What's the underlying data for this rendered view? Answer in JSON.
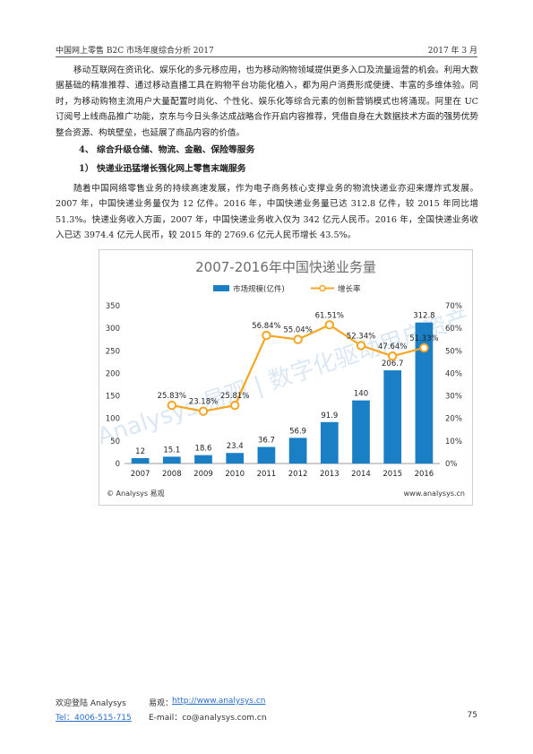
{
  "header": {
    "left": "中国网上零售 B2C 市场年度综合分析 2017",
    "right": "2017 年 3 月"
  },
  "paragraphs": {
    "p1": "移动互联网在资讯化、娱乐化的多元移应用，也为移动购物领域提供更多入口及流量运营的机会。利用大数据基础的精准推荐、通过移动直播工具在购物平台功能化植入，都为用户消费形成便捷、丰富的多维体验。同时，为移动购物主流用户大量配置时尚化、个性化、娱乐化等综合元素的创新营销模式也将涌现。阿里在 UC 订阅号上线商品推广功能，京东与今日头条达成战略合作开启内容推荐，凭借自身在大数据技术方面的强势优势整合资源、构筑壁垒，也延展了商品内容的价值。",
    "p2": "随着中国网络零售业务的持续高速发展，作为电子商务核心支撑业务的物流快递业亦迎来爆炸式发展。2007 年，中国快递业务量仅为 12 亿件。2016 年，中国快递业务量已达 312.8 亿件，较 2015 年同比增 51.3%。快递业务收入方面，2007 年，中国快递业务收入仅为 342 亿元人民币。2016 年，全国快递业务收入已达 3974.4 亿元人民币，较 2015 年的 2769.6 亿元人民币增长 43.5%。"
  },
  "headings": {
    "h4": "4、 综合升级仓储、物流、金融、保险等服务",
    "h41": "1） 快递业迅猛增长强化网上零售末端服务"
  },
  "chart_data": {
    "type": "bar",
    "title": "2007-2016年中国快递业务量",
    "categories": [
      "2007",
      "2008",
      "2009",
      "2010",
      "2011",
      "2012",
      "2013",
      "2014",
      "2015",
      "2016"
    ],
    "series": [
      {
        "name": "市场规模(亿件)",
        "type": "bar",
        "axis": "left",
        "values": [
          12,
          15.1,
          18.6,
          23.4,
          36.7,
          56.9,
          91.9,
          140,
          206.7,
          312.8
        ],
        "labels": [
          "12",
          "15.1",
          "18.6",
          "23.4",
          "36.7",
          "56.9",
          "91.9",
          "140",
          "206.7",
          "312.8"
        ]
      },
      {
        "name": "增长率",
        "type": "line",
        "axis": "right",
        "values": [
          null,
          25.83,
          23.18,
          25.81,
          56.84,
          55.04,
          61.51,
          52.34,
          47.64,
          51.33
        ],
        "labels": [
          "",
          "25.83%",
          "23.18%",
          "25.81%",
          "56.84%",
          "55.04%",
          "61.51%",
          "52.34%",
          "47.64%",
          "51.33%"
        ]
      }
    ],
    "y_left": {
      "min": 0,
      "max": 350,
      "ticks": [
        "0",
        "50",
        "100",
        "150",
        "200",
        "250",
        "300",
        "350"
      ]
    },
    "y_right": {
      "min": 0,
      "max": 70,
      "ticks": [
        "0%",
        "10%",
        "20%",
        "30%",
        "40%",
        "50%",
        "60%",
        "70%"
      ]
    },
    "legend": "top",
    "grid": false,
    "colors": {
      "bar": "#1a7fc4",
      "line": "#f5a623",
      "title": "#6b6b6b"
    },
    "watermark": "Analysys 易观 | 数字化驱动用户资产",
    "source_left": "© Analysys 易观",
    "source_right": "www.analysys.cn"
  },
  "footer": {
    "welcome": "欢迎登陆 Analysys",
    "yiguan_label": "易观：",
    "yiguan_url": "http://www.analysys.cn",
    "tel": "Tel：4006-515-715",
    "email": "E-mail：co@analysys.com.cn",
    "page": "75"
  }
}
